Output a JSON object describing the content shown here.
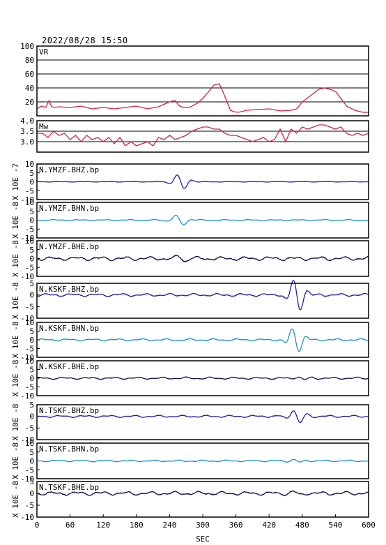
{
  "header": {
    "datetime": "2022/08/28  15:50"
  },
  "chart_data": [
    {
      "type": "line",
      "label": "VR",
      "ylim": [
        0,
        100
      ],
      "yticks": [
        "100",
        "80",
        "60",
        "40",
        "20"
      ],
      "color": "#d0204a",
      "grid": true,
      "x": [
        0,
        8,
        16,
        22,
        26,
        30,
        40,
        60,
        80,
        100,
        120,
        140,
        160,
        180,
        200,
        220,
        240,
        250,
        258,
        266,
        276,
        290,
        300,
        310,
        320,
        330,
        340,
        350,
        356,
        364,
        380,
        400,
        420,
        440,
        460,
        470,
        480,
        500,
        510,
        520,
        530,
        540,
        550,
        560,
        575,
        590,
        600
      ],
      "values": [
        10,
        14,
        12,
        22,
        14,
        12,
        13,
        12,
        14,
        10,
        12,
        10,
        12,
        14,
        10,
        13,
        20,
        22,
        14,
        12,
        12,
        18,
        25,
        34,
        44,
        46,
        28,
        8,
        6,
        5,
        8,
        9,
        10,
        7,
        8,
        10,
        20,
        32,
        38,
        40,
        38,
        35,
        25,
        14,
        8,
        5,
        5
      ]
    },
    {
      "type": "line",
      "label": "Mw",
      "ylim": [
        2.5,
        4.0
      ],
      "yticks": [
        "4.0",
        "3.5",
        "3.0"
      ],
      "color": "#d0204a",
      "grid": true,
      "x": [
        0,
        10,
        20,
        30,
        40,
        50,
        60,
        70,
        80,
        90,
        100,
        110,
        120,
        130,
        140,
        150,
        160,
        170,
        180,
        190,
        200,
        210,
        220,
        230,
        240,
        250,
        260,
        270,
        280,
        290,
        300,
        310,
        320,
        330,
        340,
        350,
        360,
        370,
        380,
        390,
        400,
        410,
        420,
        430,
        440,
        450,
        460,
        470,
        480,
        490,
        500,
        510,
        520,
        530,
        540,
        550,
        560,
        570,
        580,
        590,
        600
      ],
      "values": [
        3.4,
        3.4,
        3.2,
        3.5,
        3.3,
        3.4,
        3.1,
        3.3,
        3.0,
        3.3,
        3.1,
        3.2,
        3.0,
        3.2,
        2.9,
        3.2,
        2.8,
        3.0,
        2.8,
        2.9,
        3.0,
        2.8,
        3.2,
        3.1,
        3.3,
        3.1,
        3.2,
        3.3,
        3.5,
        3.6,
        3.7,
        3.7,
        3.6,
        3.6,
        3.4,
        3.3,
        3.3,
        3.2,
        3.1,
        3.0,
        3.1,
        3.2,
        3.0,
        3.1,
        3.6,
        3.0,
        3.6,
        3.4,
        3.7,
        3.6,
        3.7,
        3.8,
        3.8,
        3.7,
        3.6,
        3.7,
        3.4,
        3.3,
        3.4,
        3.3,
        3.4
      ]
    },
    {
      "type": "line",
      "label": "N.YMZF.BHZ.bp",
      "unit": "X 10E -7",
      "ylim": [
        -10,
        10
      ],
      "yticks": [
        "10",
        "5",
        "0",
        "-5",
        "-10"
      ],
      "color": "#1c1cb4",
      "noise": 0.08,
      "pulse": {
        "t": 260,
        "amp": 4.5,
        "period": 30
      }
    },
    {
      "type": "line",
      "label": "N.YMZF.BHN.bp",
      "unit": "X 10E -8",
      "ylim": [
        -10,
        10
      ],
      "yticks": [
        "10",
        "5",
        "0",
        "-5",
        "-10"
      ],
      "color": "#1a8fd6",
      "noise": 0.25,
      "pulse": {
        "t": 258,
        "amp": 3.0,
        "period": 34
      }
    },
    {
      "type": "line",
      "label": "N.YMZF.BHE.bp",
      "unit": "X 10E -8",
      "ylim": [
        -10,
        10
      ],
      "yticks": [
        "10",
        "5",
        "0",
        "-5",
        "-10"
      ],
      "color": "#101048",
      "noise": 0.7,
      "pulse": {
        "t": 262,
        "amp": 1.6,
        "period": 30
      }
    },
    {
      "type": "line",
      "label": "N.KSKF.BHZ.bp",
      "unit": "X 10E -8",
      "ylim": [
        -10,
        5
      ],
      "yticks": [
        "5",
        "0",
        "-5",
        "-10"
      ],
      "color": "#1c1cb4",
      "noise": 0.4,
      "pulse": {
        "t": 470,
        "amp": 7.0,
        "period": 28
      }
    },
    {
      "type": "line",
      "label": "N.KSKF.BHN.bp",
      "unit": "X 10E -8",
      "ylim": [
        -10,
        10
      ],
      "yticks": [
        "10",
        "5",
        "0",
        "-5",
        "-10"
      ],
      "color": "#1a8fd6",
      "noise": 0.4,
      "pulse": {
        "t": 468,
        "amp": 7.0,
        "period": 28
      }
    },
    {
      "type": "line",
      "label": "N.KSKF.BHE.bp",
      "unit": "X 10E -8",
      "ylim": [
        -10,
        10
      ],
      "yticks": [
        "10",
        "5",
        "0",
        "-5",
        "-10"
      ],
      "color": "#101048",
      "noise": 0.4,
      "pulse": {
        "t": 478,
        "amp": 1.0,
        "period": 30
      }
    },
    {
      "type": "line",
      "label": "N.TSKF.BHZ.bp",
      "unit": "X 10E -8",
      "ylim": [
        -10,
        5
      ],
      "yticks": [
        "5",
        "0",
        "-5",
        "-10"
      ],
      "color": "#1c1cb4",
      "noise": 0.3,
      "pulse": {
        "t": 470,
        "amp": 3.2,
        "period": 28
      }
    },
    {
      "type": "line",
      "label": "N.TSKF.BHN.bp",
      "unit": "X 10E -8",
      "ylim": [
        -10,
        10
      ],
      "yticks": [
        "10",
        "5",
        "0",
        "-5",
        "-10"
      ],
      "color": "#1a8fd6",
      "noise": 0.3,
      "pulse": {
        "t": 470,
        "amp": 0.8,
        "period": 28
      }
    },
    {
      "type": "line",
      "label": "N.TSKF.BHE.bp",
      "unit": "X 10E -8",
      "ylim": [
        -10,
        5
      ],
      "yticks": [
        "5",
        "0",
        "-5",
        "-10"
      ],
      "color": "#101048",
      "noise": 0.5,
      "pulse": {
        "t": 470,
        "amp": 0.8,
        "period": 30
      }
    }
  ],
  "xaxis": {
    "label": "SEC",
    "xlim": [
      0,
      600
    ],
    "ticks": [
      0,
      60,
      120,
      180,
      240,
      300,
      360,
      420,
      480,
      540,
      600
    ]
  }
}
